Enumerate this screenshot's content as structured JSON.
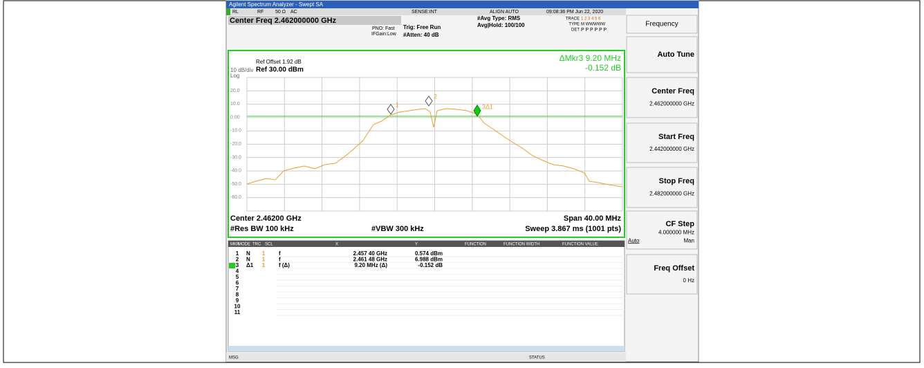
{
  "title_bar": "Agilent Spectrum Analyzer - Swept SA",
  "status": [
    "RL",
    "RF",
    "50 Ω",
    "AC",
    "SENSE:INT",
    "ALIGN AUTO",
    "09:08:36 PM Jun 22, 2020"
  ],
  "settings": {
    "center_freq": "Center Freq 2.462000000 GHz",
    "pno": "PNO: Fast",
    "ifgain": "IFGain:Low",
    "trig": "Trig: Free Run",
    "atten": "#Atten: 40 dB",
    "avg_type": "#Avg Type: RMS",
    "avg_hold": "Avg|Hold: 100/100",
    "trace": "TRACE",
    "trace_nums": "1 2 3 4 5 6",
    "type": "TYPE",
    "type_val": "M WWWWW",
    "det": "DET",
    "det_val": "P P P P P P"
  },
  "graticule": {
    "ref_offset": "Ref Offset 1.92 dB",
    "scale": "10 dB/div",
    "ref": "Ref 30.00 dBm",
    "log": "Log",
    "delta_marker": "ΔMkr3 9.20 MHz",
    "delta_value": "-0.152 dB",
    "y_labels": [
      "20.0",
      "10.0",
      "0.00",
      "-10.0",
      "-20.0",
      "-30.0",
      "-40.0",
      "-50.0",
      "-60.0"
    ],
    "markers": [
      "1",
      "2",
      "3Δ1"
    ],
    "center": "Center 2.46200 GHz",
    "span": "Span 40.00 MHz",
    "rbw": "#Res BW 100 kHz",
    "vbw": "#VBW 300 kHz",
    "sweep": "Sweep  3.867 ms (1001 pts)"
  },
  "table": {
    "headers": [
      "MKR",
      "MODE",
      "TRC",
      "SCL",
      "X",
      "Y",
      "FUNCTION",
      "FUNCTION WIDTH",
      "FUNCTION VALUE"
    ],
    "rows": [
      [
        "1",
        "N",
        "1",
        "f",
        "2.457 40 GHz",
        "0.574 dBm"
      ],
      [
        "2",
        "N",
        "1",
        "f",
        "2.461 48 GHz",
        "6.988 dBm"
      ],
      [
        "3",
        "Δ1",
        "1",
        "f  (Δ)",
        "9.20 MHz (Δ)",
        "-0.152 dB"
      ],
      [
        "4"
      ],
      [
        "5"
      ],
      [
        "6"
      ],
      [
        "7"
      ],
      [
        "8"
      ],
      [
        "9"
      ],
      [
        "10"
      ],
      [
        "11"
      ]
    ]
  },
  "softkeys": [
    {
      "label": "Frequency"
    },
    {
      "label": "Auto Tune"
    },
    {
      "label": "Center Freq",
      "value": "2.462000000 GHz"
    },
    {
      "label": "Start Freq",
      "value": "2.442000000 GHz"
    },
    {
      "label": "Stop Freq",
      "value": "2.482000000 GHz"
    },
    {
      "label": "CF Step",
      "value": "4.000000 MHz",
      "options": [
        "Auto",
        "Man"
      ]
    },
    {
      "label": "Freq Offset",
      "value": "0 Hz"
    }
  ],
  "footer": {
    "msg": "MSG",
    "status": "STATUS"
  }
}
